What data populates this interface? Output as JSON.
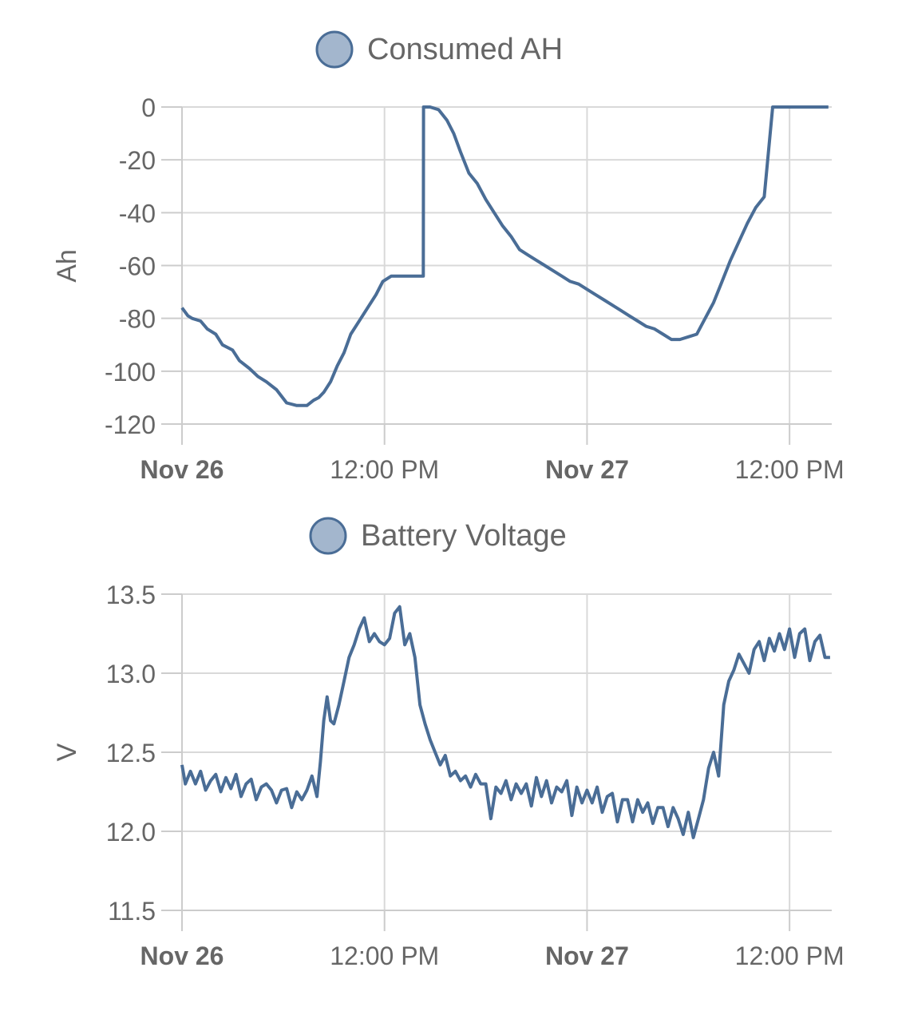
{
  "chart_data": [
    {
      "type": "line",
      "legend": "Consumed AH",
      "ylabel": "Ah",
      "xlabel": "",
      "ylim": [
        -120,
        0
      ],
      "yticks": [
        "0",
        "-20",
        "-40",
        "-60",
        "-80",
        "-100",
        "-120"
      ],
      "yticks_values": [
        0,
        -20,
        -40,
        -60,
        -80,
        -100,
        -120
      ],
      "xlim_hours": [
        0,
        38.5
      ],
      "xticks": [
        {
          "label": "Nov 26",
          "hour": 0,
          "bold": true
        },
        {
          "label": "12:00 PM",
          "hour": 12,
          "bold": false
        },
        {
          "label": "Nov 27",
          "hour": 24,
          "bold": true
        },
        {
          "label": "12:00 PM",
          "hour": 36,
          "bold": false
        }
      ],
      "grid": true,
      "colors": {
        "line": "#4a6d96",
        "legend_fill": "#a3b6cd",
        "legend_stroke": "#4a6d96"
      },
      "series": [
        {
          "name": "Consumed AH",
          "x": [
            0.0,
            0.35,
            0.6,
            1.1,
            1.5,
            2.0,
            2.4,
            3.0,
            3.4,
            4.0,
            4.5,
            5.0,
            5.6,
            6.2,
            6.8,
            7.4,
            7.8,
            8.1,
            8.4,
            8.8,
            9.2,
            9.6,
            10.0,
            10.6,
            11.1,
            11.5,
            11.9,
            12.4,
            12.8,
            13.2,
            13.6,
            14.0,
            14.3,
            14.31,
            14.7,
            15.2,
            15.7,
            16.1,
            16.5,
            17.0,
            17.5,
            18.0,
            18.5,
            19.0,
            19.5,
            20.0,
            20.5,
            21.0,
            21.5,
            22.0,
            22.5,
            23.0,
            23.5,
            24.0,
            24.5,
            25.0,
            25.5,
            26.0,
            26.5,
            27.0,
            27.5,
            28.0,
            28.5,
            29.0,
            29.5,
            30.0,
            30.5,
            31.0,
            31.5,
            32.0,
            32.5,
            33.0,
            33.5,
            34.0,
            34.5,
            35.0,
            35.5,
            36.0,
            36.5,
            37.0,
            37.5,
            38.0,
            38.1,
            38.11,
            38.3
          ],
          "y": [
            -76,
            -79,
            -80,
            -81,
            -84,
            -86,
            -90,
            -92,
            -96,
            -99,
            -102,
            -104,
            -107,
            -112,
            -113,
            -113,
            -111,
            -110,
            -108,
            -104,
            -98,
            -93,
            -86,
            -80,
            -75,
            -71,
            -66,
            -64,
            -64,
            -64,
            -64,
            -64,
            -64,
            0,
            0,
            -1,
            -5,
            -10,
            -17,
            -25,
            -29,
            -35,
            -40,
            -45,
            -49,
            -54,
            -56,
            -58,
            -60,
            -62,
            -64,
            -66,
            -67,
            -69,
            -71,
            -73,
            -75,
            -77,
            -79,
            -81,
            -83,
            -84,
            -86,
            -88,
            -88,
            -87,
            -86,
            -80,
            -74,
            -66,
            -58,
            -51,
            -44,
            -38,
            -34,
            0,
            0,
            0,
            0,
            0,
            0,
            0,
            0,
            0,
            0
          ]
        }
      ]
    },
    {
      "type": "line",
      "legend": "Battery Voltage",
      "ylabel": "V",
      "xlabel": "",
      "ylim": [
        11.5,
        13.5
      ],
      "yticks": [
        "13.5",
        "13.0",
        "12.5",
        "12.0",
        "11.5"
      ],
      "yticks_values": [
        13.5,
        13.0,
        12.5,
        12.0,
        11.5
      ],
      "xlim_hours": [
        0,
        38.5
      ],
      "xticks": [
        {
          "label": "Nov 26",
          "hour": 0,
          "bold": true
        },
        {
          "label": "12:00 PM",
          "hour": 12,
          "bold": false
        },
        {
          "label": "Nov 27",
          "hour": 24,
          "bold": true
        },
        {
          "label": "12:00 PM",
          "hour": 36,
          "bold": false
        }
      ],
      "grid": true,
      "colors": {
        "line": "#4a6d96",
        "legend_fill": "#a3b6cd",
        "legend_stroke": "#4a6d96"
      },
      "series": [
        {
          "name": "Battery Voltage",
          "x": [
            0.0,
            0.2,
            0.5,
            0.8,
            1.1,
            1.4,
            1.7,
            2.0,
            2.3,
            2.6,
            2.9,
            3.2,
            3.5,
            3.8,
            4.1,
            4.4,
            4.7,
            5.0,
            5.3,
            5.6,
            5.9,
            6.2,
            6.5,
            6.8,
            7.1,
            7.4,
            7.7,
            8.0,
            8.2,
            8.4,
            8.6,
            8.8,
            9.0,
            9.3,
            9.6,
            9.9,
            10.2,
            10.5,
            10.8,
            11.1,
            11.4,
            11.7,
            12.0,
            12.3,
            12.6,
            12.9,
            13.2,
            13.5,
            13.8,
            14.1,
            14.4,
            14.7,
            15.0,
            15.3,
            15.6,
            15.9,
            16.2,
            16.5,
            16.8,
            17.1,
            17.4,
            17.7,
            18.0,
            18.3,
            18.6,
            18.9,
            19.2,
            19.5,
            19.8,
            20.1,
            20.4,
            20.7,
            21.0,
            21.3,
            21.6,
            21.9,
            22.2,
            22.5,
            22.8,
            23.1,
            23.4,
            23.7,
            24.0,
            24.3,
            24.6,
            24.9,
            25.2,
            25.5,
            25.8,
            26.1,
            26.4,
            26.7,
            27.0,
            27.3,
            27.6,
            27.9,
            28.2,
            28.5,
            28.8,
            29.1,
            29.4,
            29.7,
            30.0,
            30.3,
            30.6,
            30.9,
            31.2,
            31.5,
            31.8,
            32.1,
            32.4,
            32.7,
            33.0,
            33.3,
            33.6,
            33.9,
            34.2,
            34.5,
            34.8,
            35.1,
            35.4,
            35.7,
            36.0,
            36.3,
            36.6,
            36.9,
            37.2,
            37.5,
            37.8,
            38.1,
            38.4
          ],
          "y": [
            12.42,
            12.3,
            12.38,
            12.3,
            12.38,
            12.26,
            12.32,
            12.36,
            12.25,
            12.34,
            12.27,
            12.36,
            12.22,
            12.3,
            12.33,
            12.2,
            12.28,
            12.3,
            12.26,
            12.18,
            12.26,
            12.27,
            12.15,
            12.25,
            12.2,
            12.26,
            12.35,
            12.22,
            12.44,
            12.7,
            12.85,
            12.7,
            12.68,
            12.8,
            12.95,
            13.1,
            13.18,
            13.28,
            13.35,
            13.2,
            13.25,
            13.2,
            13.18,
            13.22,
            13.38,
            13.42,
            13.18,
            13.25,
            13.1,
            12.8,
            12.68,
            12.58,
            12.5,
            12.42,
            12.48,
            12.35,
            12.38,
            12.32,
            12.35,
            12.28,
            12.36,
            12.3,
            12.3,
            12.08,
            12.28,
            12.24,
            12.32,
            12.2,
            12.3,
            12.24,
            12.3,
            12.16,
            12.34,
            12.22,
            12.32,
            12.18,
            12.28,
            12.25,
            12.32,
            12.1,
            12.28,
            12.18,
            12.26,
            12.18,
            12.28,
            12.12,
            12.22,
            12.24,
            12.06,
            12.2,
            12.2,
            12.06,
            12.2,
            12.12,
            12.18,
            12.05,
            12.15,
            12.15,
            12.03,
            12.15,
            12.08,
            11.98,
            12.12,
            11.96,
            12.08,
            12.2,
            12.4,
            12.5,
            12.35,
            12.8,
            12.95,
            13.02,
            13.12,
            13.06,
            13.0,
            13.15,
            13.2,
            13.08,
            13.22,
            13.14,
            13.25,
            13.15,
            13.28,
            13.1,
            13.25,
            13.28,
            13.08,
            13.2,
            13.24,
            13.1,
            13.1
          ]
        }
      ]
    }
  ]
}
